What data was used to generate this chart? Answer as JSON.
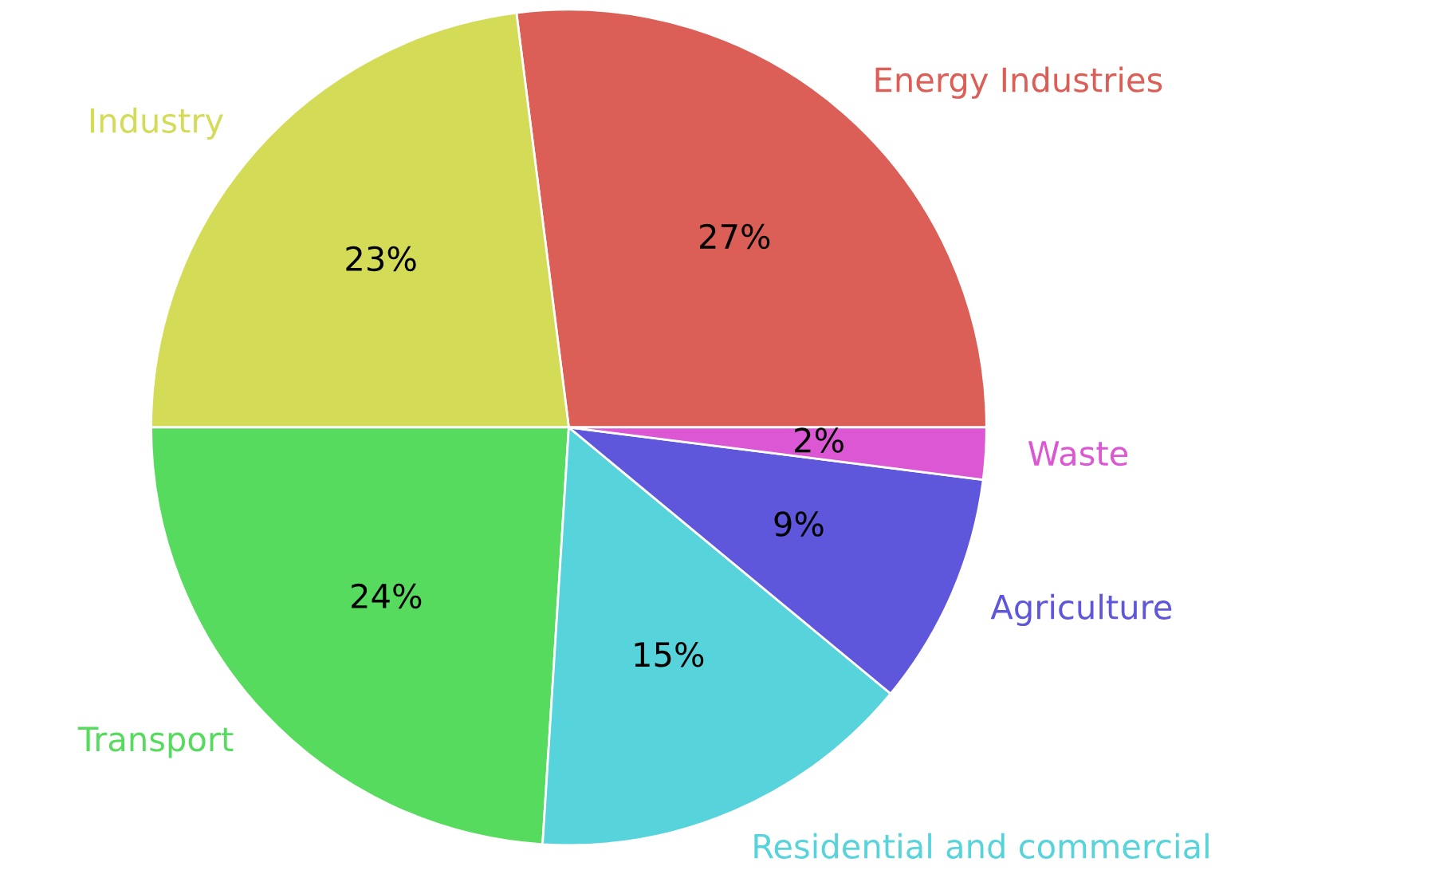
{
  "chart_data": {
    "type": "pie",
    "categories": [
      "Energy Industries",
      "Industry",
      "Transport",
      "Residential and commercial",
      "Agriculture",
      "Waste"
    ],
    "values": [
      27,
      23,
      24,
      15,
      9,
      2
    ],
    "colors": [
      "#db5f57",
      "#d3db57",
      "#57db5f",
      "#57d3db",
      "#5f57db",
      "#db57d3"
    ],
    "value_labels": [
      "27%",
      "23%",
      "24%",
      "15%",
      "9%",
      "2%"
    ]
  }
}
